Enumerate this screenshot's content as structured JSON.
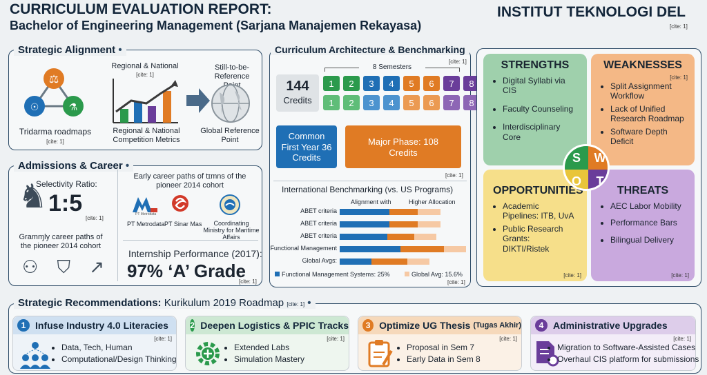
{
  "header": {
    "title": "CURRICULUM EVALUATION REPORT:",
    "subtitle": "Bachelor of Engineering Management (Sarjana Manajemen Rekayasa)",
    "institution": "INSTITUT TEKNOLOGI DEL",
    "cite": "[cite: 1]"
  },
  "alignment": {
    "title": "Strategic Alignment",
    "tridarma": "Tridarma roadmaps",
    "tridarma_cite": "[cite: 1]",
    "regional_top": "Regional & National",
    "regional_top_cite": "[cite: 1]",
    "regional_bottom": "Regional & National Competition Metrics",
    "still": "Still-to-be-Reference Point",
    "global": "Global Reference Point"
  },
  "admissions": {
    "title": "Admissions & Career",
    "selectivity_label": "Selectivity Ratio:",
    "selectivity_value": "1:5",
    "selectivity_cite": "[cite: 1]",
    "career_left": "Gramɱly career paths of the pioneer 2014 cohort",
    "career_top": "Early career paths of tɪmns of the pioneer 2014 cohort",
    "companies": [
      "PT Metrodata",
      "PT Sinar Mas",
      "Coordinating Ministry for Maritime Affairs"
    ],
    "logo_small": "PT Metrodata",
    "internship_label": "Internship Performance (2017):",
    "internship_value": "97% ‘A’ Grade",
    "internship_cite": "[cite: 1]",
    "cite": "[cite: 1]"
  },
  "architecture": {
    "title": "Curriculum Architecture & Benchmarking",
    "cite": "[cite: 1]",
    "semesters_label": "8 Semesters",
    "credits_value": "144",
    "credits_label": "Credits",
    "common_label": "Common First Year 36 Credits",
    "major_label": "Major Phase: 108 Credits",
    "major_cite": "[cite: 1]",
    "semesters": [
      "1",
      "2",
      "3",
      "4",
      "5",
      "6",
      "7",
      "8"
    ],
    "semester_colors": [
      "#2b9a4c",
      "#2b9a4c",
      "#1f6fb5",
      "#1f6fb5",
      "#e07b24",
      "#e07b24",
      "#6a3d9a",
      "#6a3d9a"
    ]
  },
  "benchmark": {
    "title": "International Benchmarking (vs. US Programs)",
    "col_alignment": "Alignment with",
    "col_higher": "Higher Allocation",
    "rows": [
      "ABET criteria",
      "ABET criteria",
      "ABET criteria",
      "Functional Management",
      "Global Avgs:"
    ],
    "legend_blue": "Functional Management Systems: 25%",
    "legend_peach": "Global Avg: 15.6%",
    "cite": "[cite: 1]"
  },
  "chart_data": {
    "type": "bar",
    "categories": [
      "ABET criteria",
      "ABET criteria",
      "ABET criteria",
      "Functional Management",
      "Global Avgs:"
    ],
    "series": [
      {
        "name": "Functional Management Systems: 25%",
        "values": [
          55,
          55,
          53,
          68,
          35
        ]
      },
      {
        "values": [
          32,
          32,
          30,
          48,
          40
        ]
      },
      {
        "name": "Global Avg: 15.6%",
        "values": [
          25,
          25,
          25,
          25,
          25
        ]
      }
    ]
  },
  "swot": {
    "strengths": {
      "title": "STRENGTHS",
      "items": [
        "Digital Syllabi via CIS",
        "Faculty Counseling",
        "Interdisciplinary Core"
      ]
    },
    "weaknesses": {
      "title": "WEAKNESSES",
      "cite": "[cite: 1]",
      "items": [
        "Split Assignment Workflow",
        "Lack of Unified Research Roadmap",
        "Software Depth Deficit"
      ]
    },
    "opportunities": {
      "title": "OPPORTUNITIES",
      "items": [
        "Academic Pipelines: ITB, UvA",
        "Public Research Grants: DIKTI/Ristek"
      ],
      "cite": "[cite: 1]"
    },
    "threats": {
      "title": "THREATS",
      "items": [
        "AEC Labor Mobility",
        "Performance Bars",
        "Bilingual Delivery"
      ],
      "cite": "[cite: 1]"
    },
    "letters": [
      "S",
      "W",
      "O",
      "T"
    ]
  },
  "recommendations": {
    "title": "Strategic Recommendations:",
    "subtitle": "Kurikulum 2019 Roadmap",
    "cite": "[cite: 1]",
    "cards": [
      {
        "num": "1",
        "title": "Infuse Industry 4.0 Literacies",
        "cite": "[cite: 1]",
        "items": [
          "Data, Tech, Human",
          "Computational/Design Thinking"
        ]
      },
      {
        "num": "2",
        "title": "Deepen Logistics & PPIC Tracks",
        "cite": "[cite: 1]",
        "items": [
          "Extended Labs",
          "Simulation Mastery"
        ]
      },
      {
        "num": "3",
        "title": "Optimize UG Thesis",
        "title_small": "(Tugas Akhir)",
        "cite": "[cite: 1]",
        "items": [
          "Proposal in Sem 7",
          "Early Data in Sem 8"
        ]
      },
      {
        "num": "4",
        "title": "Administrative Upgrades",
        "cite": "[cite: 1]",
        "items": [
          "Migration to Software-Assisted Cases",
          "Overhaul CIS platform for submissions"
        ]
      }
    ]
  },
  "colors": {
    "navy": "#1f3a5a",
    "green": "#2b9a4c",
    "blue": "#1f6fb5",
    "orange": "#e07b24",
    "purple": "#6a3d9a"
  }
}
